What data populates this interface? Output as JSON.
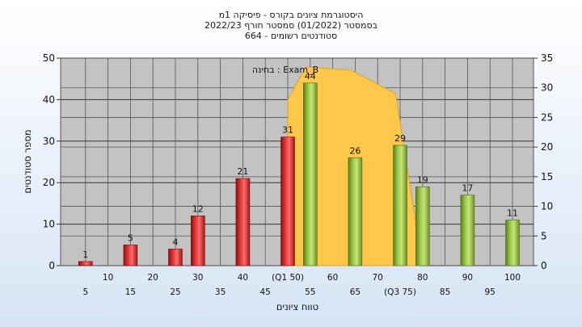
{
  "title_lines": [
    "היסטוגרמת ציונים בקורס - פיסיקה 1מ",
    "בסמסטר  (01/2022)  סמסטר חורף  2022/23",
    "סטודנטים רשומים - 664"
  ],
  "chart_data": {
    "type": "bar",
    "xlabel": "טווח ציונים",
    "ylabel": "מספר סטודנטים",
    "ylim": [
      0,
      50
    ],
    "yticks": [
      0,
      10,
      20,
      30,
      40,
      50
    ],
    "y2lim": [
      0,
      35
    ],
    "y2ticks": [
      0,
      5,
      10,
      15,
      20,
      25,
      30,
      35
    ],
    "bars": [
      {
        "x": 5,
        "value": 1,
        "label": "1",
        "color": "red"
      },
      {
        "x": 15,
        "value": 5,
        "label": "5",
        "color": "red"
      },
      {
        "x": 25,
        "value": 4,
        "label": "4",
        "color": "red"
      },
      {
        "x": 30,
        "value": 12,
        "label": "12",
        "color": "red"
      },
      {
        "x": 40,
        "value": 21,
        "label": "21",
        "color": "red"
      },
      {
        "x": 50,
        "value": 31,
        "label": "31",
        "color": "red"
      },
      {
        "x": 55,
        "value": 44,
        "label": "44",
        "color": "green"
      },
      {
        "x": 65,
        "value": 26,
        "label": "26",
        "color": "green"
      },
      {
        "x": 75,
        "value": 29,
        "label": "29",
        "color": "green"
      },
      {
        "x": 80,
        "value": 19,
        "label": "19",
        "color": "green"
      },
      {
        "x": 90,
        "value": 17,
        "label": "17",
        "color": "green"
      },
      {
        "x": 100,
        "value": 11,
        "label": "11",
        "color": "green"
      }
    ],
    "xticks_lower": [
      "5",
      "15",
      "25",
      "35",
      "45",
      "55",
      "65",
      "(Q3 75)",
      "85",
      "95"
    ],
    "xticks_upper": [
      "10",
      "20",
      "30",
      "40",
      "(Q1 50)",
      "60",
      "70",
      "80",
      "90",
      "100"
    ],
    "exam_area": {
      "label": "בחינה : Exam_B",
      "points": [
        [
          50,
          0
        ],
        [
          50,
          28
        ],
        [
          54,
          33.5
        ],
        [
          64,
          33
        ],
        [
          74,
          29
        ],
        [
          80,
          0
        ]
      ]
    },
    "colors": {
      "red_bar": "#d42020",
      "green_bar": "#8cb83a",
      "area": "#ffc84a",
      "plot_bg": "#c3c3c3"
    }
  }
}
